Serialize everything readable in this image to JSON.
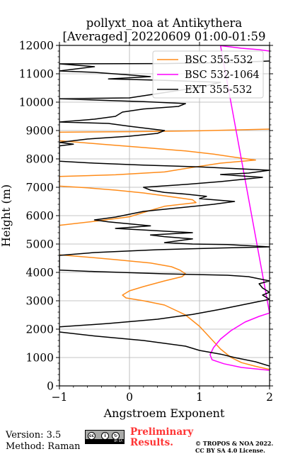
{
  "chart_data": {
    "type": "line",
    "title": "pollyxt_noa at Antikythera",
    "subtitle": "[Averaged] 20220609 01:00-01:59",
    "xlabel": "Angstroem Exponent",
    "ylabel": "Height (m)",
    "xlim": [
      -1,
      2
    ],
    "ylim": [
      0,
      12000
    ],
    "xticks": [
      "−1",
      "0",
      "1",
      "2"
    ],
    "yticks": [
      "0",
      "1000",
      "2000",
      "3000",
      "4000",
      "5000",
      "6000",
      "7000",
      "8000",
      "9000",
      "10000",
      "11000",
      "12000"
    ],
    "grid": true,
    "legend_position": "top-right",
    "series": [
      {
        "name": "BSC 355-532",
        "color": "#ff8c1a",
        "points": [
          [
            2.0,
            580
          ],
          [
            1.8,
            690
          ],
          [
            1.6,
            820
          ],
          [
            1.45,
            1000
          ],
          [
            1.3,
            1300
          ],
          [
            1.15,
            1700
          ],
          [
            1.0,
            2100
          ],
          [
            0.8,
            2500
          ],
          [
            0.5,
            2850
          ],
          [
            0.2,
            3000
          ],
          [
            -0.05,
            3100
          ],
          [
            -0.1,
            3200
          ],
          [
            0.0,
            3350
          ],
          [
            0.2,
            3500
          ],
          [
            0.5,
            3700
          ],
          [
            0.75,
            3850
          ],
          [
            0.8,
            3950
          ],
          [
            0.72,
            4080
          ],
          [
            0.6,
            4200
          ],
          [
            0.3,
            4330
          ],
          [
            -0.2,
            4450
          ],
          [
            -0.75,
            4570
          ],
          [
            -1.0,
            4620
          ],
          [
            -1.1,
            4720
          ],
          [
            -1.0,
            5660
          ],
          [
            -0.5,
            5800
          ],
          [
            0.0,
            5960
          ],
          [
            0.25,
            6150
          ],
          [
            0.5,
            6330
          ],
          [
            0.95,
            6460
          ],
          [
            0.9,
            6560
          ],
          [
            0.5,
            6700
          ],
          [
            0.2,
            6800
          ],
          [
            -0.2,
            6900
          ],
          [
            -0.6,
            6980
          ],
          [
            -1.0,
            7040
          ],
          [
            -1.0,
            7380
          ],
          [
            -0.2,
            7440
          ],
          [
            0.5,
            7540
          ],
          [
            0.9,
            7700
          ],
          [
            1.3,
            7850
          ],
          [
            1.8,
            7960
          ],
          [
            1.5,
            8060
          ],
          [
            1.2,
            8170
          ],
          [
            0.8,
            8280
          ],
          [
            0.3,
            8380
          ],
          [
            -0.4,
            8520
          ],
          [
            -1.0,
            8640
          ],
          [
            -1.0,
            8940
          ],
          [
            0.0,
            8960
          ],
          [
            1.0,
            8990
          ],
          [
            2.0,
            9050
          ]
        ]
      },
      {
        "name": "BSC 532-1064",
        "color": "#ff00ff",
        "points": [
          [
            2.0,
            550
          ],
          [
            1.6,
            650
          ],
          [
            1.35,
            780
          ],
          [
            1.18,
            920
          ],
          [
            1.15,
            1100
          ],
          [
            1.2,
            1350
          ],
          [
            1.3,
            1650
          ],
          [
            1.45,
            1950
          ],
          [
            1.65,
            2250
          ],
          [
            1.85,
            2450
          ],
          [
            2.0,
            2570
          ],
          [
            1.3,
            11990
          ],
          [
            1.6,
            11900
          ],
          [
            1.85,
            11850
          ],
          [
            2.0,
            11800
          ]
        ]
      },
      {
        "name": "EXT 355-532",
        "color": "#000000",
        "points": [
          [
            2.0,
            700
          ],
          [
            1.8,
            850
          ],
          [
            1.5,
            1000
          ],
          [
            1.3,
            1120
          ],
          [
            1.0,
            1250
          ],
          [
            0.8,
            1400
          ],
          [
            0.2,
            1600
          ],
          [
            -0.5,
            1760
          ],
          [
            -1.0,
            1900
          ],
          [
            -1.0,
            2080
          ],
          [
            -0.3,
            2200
          ],
          [
            0.4,
            2350
          ],
          [
            0.9,
            2520
          ],
          [
            1.3,
            2700
          ],
          [
            1.7,
            2900
          ],
          [
            2.0,
            3050
          ],
          [
            1.9,
            3200
          ],
          [
            2.0,
            3300
          ],
          [
            1.9,
            3450
          ],
          [
            1.85,
            3600
          ],
          [
            2.0,
            3700
          ],
          [
            1.7,
            3850
          ],
          [
            1.4,
            3900
          ],
          [
            0.5,
            3950
          ],
          [
            -0.5,
            4030
          ],
          [
            -1.0,
            4080
          ],
          [
            -1.0,
            4600
          ],
          [
            -0.5,
            4700
          ],
          [
            0.4,
            4800
          ],
          [
            1.3,
            4860
          ],
          [
            2.0,
            4900
          ],
          [
            1.4,
            4980
          ],
          [
            0.9,
            5000
          ],
          [
            0.5,
            5050
          ],
          [
            0.9,
            5180
          ],
          [
            0.5,
            5260
          ],
          [
            0.3,
            5320
          ],
          [
            0.9,
            5400
          ],
          [
            0.3,
            5480
          ],
          [
            -0.2,
            5550
          ],
          [
            0.3,
            5640
          ],
          [
            -0.3,
            5780
          ],
          [
            -0.5,
            5850
          ],
          [
            -0.2,
            5950
          ],
          [
            0.0,
            6050
          ],
          [
            0.2,
            6150
          ],
          [
            0.6,
            6250
          ],
          [
            1.2,
            6400
          ],
          [
            1.5,
            6500
          ],
          [
            1.0,
            6600
          ],
          [
            1.1,
            6680
          ],
          [
            0.8,
            6760
          ],
          [
            0.5,
            6820
          ],
          [
            0.3,
            6900
          ],
          [
            0.2,
            7000
          ],
          [
            0.8,
            7100
          ],
          [
            1.3,
            7200
          ],
          [
            1.9,
            7350
          ],
          [
            1.3,
            7450
          ],
          [
            1.7,
            7500
          ],
          [
            2.0,
            7600
          ],
          [
            1.0,
            7720
          ],
          [
            0.2,
            7780
          ],
          [
            -0.5,
            7850
          ],
          [
            -1.0,
            7920
          ],
          [
            -1.0,
            8460
          ],
          [
            -0.8,
            8520
          ],
          [
            -1.0,
            8580
          ],
          [
            -0.6,
            8700
          ],
          [
            0.0,
            8800
          ],
          [
            0.4,
            8900
          ],
          [
            0.5,
            9000
          ],
          [
            0.0,
            9150
          ],
          [
            -0.3,
            9250
          ],
          [
            -1.0,
            9300
          ],
          [
            -0.5,
            9400
          ],
          [
            -0.2,
            9500
          ],
          [
            -0.1,
            9650
          ],
          [
            0.2,
            9760
          ],
          [
            0.7,
            9850
          ],
          [
            0.8,
            9950
          ],
          [
            0.2,
            10020
          ],
          [
            -0.2,
            10050
          ],
          [
            -1.0,
            10120
          ],
          [
            0.0,
            10150
          ],
          [
            0.8,
            10450
          ],
          [
            1.1,
            10580
          ],
          [
            1.3,
            10700
          ],
          [
            0.5,
            10770
          ],
          [
            -0.3,
            10820
          ],
          [
            0.3,
            10900
          ],
          [
            0.0,
            10960
          ],
          [
            -0.5,
            11050
          ],
          [
            -1.0,
            11100
          ],
          [
            -0.5,
            11250
          ],
          [
            -1.0,
            11350
          ],
          [
            0.5,
            11360
          ],
          [
            1.5,
            11400
          ],
          [
            2.0,
            11450
          ]
        ]
      }
    ]
  },
  "footer": {
    "version": "Version: 3.5",
    "method": "Method: Raman",
    "cc_badge": "BY SA",
    "preliminary_line1": "Preliminary",
    "preliminary_line2": "Results.",
    "license_line1": "© TROPOS & NOA 2022.",
    "license_line2": "CC BY SA 4.0 License."
  }
}
